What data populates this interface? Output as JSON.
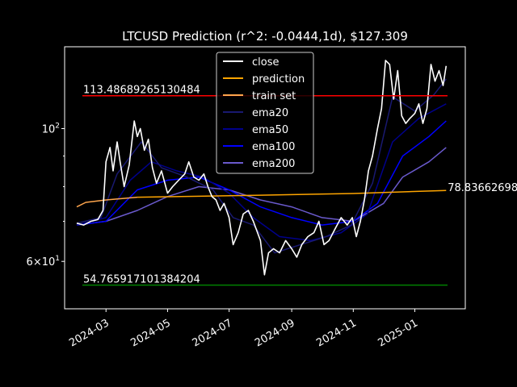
{
  "chart_data": {
    "type": "line",
    "title": "LTCUSD Prediction (r^2: -0.0444,1d), $127.309",
    "xlabel": "",
    "ylabel": "",
    "y_scale": "log",
    "ylim": [
      50,
      137
    ],
    "xlim": [
      "2024-01-20",
      "2025-02-20"
    ],
    "grid": false,
    "background": "#000000",
    "x_ticks": [
      "2024-03",
      "2024-05",
      "2024-07",
      "2024-09",
      "2024-11",
      "2025-01"
    ],
    "y_ticks": [
      {
        "value": 100,
        "label": "10^2",
        "base": "10",
        "exp": "2"
      },
      {
        "value": 60,
        "label": "6x10^1",
        "base": "6×10",
        "exp": "1"
      }
    ],
    "y_minor_ticks": [
      70,
      80,
      90
    ],
    "legend": {
      "position": "top-center",
      "entries": [
        {
          "name": "close",
          "color": "#ffffff"
        },
        {
          "name": "prediction",
          "color": "#ffa500"
        },
        {
          "name": "train set",
          "color": "#ffa64d"
        },
        {
          "name": "ema20",
          "color": "#191970"
        },
        {
          "name": "ema50",
          "color": "#00008b"
        },
        {
          "name": "ema100",
          "color": "#0000ff"
        },
        {
          "name": "ema200",
          "color": "#6a5acd"
        }
      ]
    },
    "hlines": [
      {
        "value": 113.48689265130484,
        "label": "113.48689265130484",
        "color": "#ff0000"
      },
      {
        "value": 54.765917101384204,
        "label": "54.765917101384204",
        "color": "#008000"
      }
    ],
    "annotations": [
      {
        "date": "2025-02-01",
        "value": 78.83662698,
        "text": "78.83662698"
      }
    ],
    "series": [
      {
        "name": "close",
        "color": "#ffffff",
        "points": [
          [
            "2024-02-01",
            69.5
          ],
          [
            "2024-02-08",
            69.0
          ],
          [
            "2024-02-15",
            70.0
          ],
          [
            "2024-02-22",
            70.5
          ],
          [
            "2024-02-27",
            73.0
          ],
          [
            "2024-03-01",
            88.0
          ],
          [
            "2024-03-05",
            93.0
          ],
          [
            "2024-03-08",
            85.0
          ],
          [
            "2024-03-12",
            95.0
          ],
          [
            "2024-03-15",
            88.0
          ],
          [
            "2024-03-19",
            80.0
          ],
          [
            "2024-03-24",
            87.0
          ],
          [
            "2024-03-29",
            103.0
          ],
          [
            "2024-04-01",
            97.0
          ],
          [
            "2024-04-04",
            100.0
          ],
          [
            "2024-04-08",
            92.0
          ],
          [
            "2024-04-12",
            96.0
          ],
          [
            "2024-04-16",
            86.0
          ],
          [
            "2024-04-20",
            81.0
          ],
          [
            "2024-04-25",
            85.0
          ],
          [
            "2024-05-01",
            78.0
          ],
          [
            "2024-05-06",
            80.0
          ],
          [
            "2024-05-12",
            82.0
          ],
          [
            "2024-05-18",
            84.0
          ],
          [
            "2024-05-22",
            88.0
          ],
          [
            "2024-05-27",
            83.0
          ],
          [
            "2024-06-01",
            82.0
          ],
          [
            "2024-06-06",
            84.0
          ],
          [
            "2024-06-10",
            80.0
          ],
          [
            "2024-06-14",
            77.0
          ],
          [
            "2024-06-18",
            76.0
          ],
          [
            "2024-06-22",
            73.0
          ],
          [
            "2024-06-26",
            75.0
          ],
          [
            "2024-07-01",
            71.0
          ],
          [
            "2024-07-05",
            64.0
          ],
          [
            "2024-07-10",
            67.0
          ],
          [
            "2024-07-15",
            72.0
          ],
          [
            "2024-07-20",
            73.0
          ],
          [
            "2024-07-25",
            70.0
          ],
          [
            "2024-08-01",
            65.0
          ],
          [
            "2024-08-05",
            57.0
          ],
          [
            "2024-08-09",
            62.0
          ],
          [
            "2024-08-14",
            63.0
          ],
          [
            "2024-08-20",
            62.0
          ],
          [
            "2024-08-26",
            65.0
          ],
          [
            "2024-09-01",
            63.0
          ],
          [
            "2024-09-06",
            61.0
          ],
          [
            "2024-09-11",
            64.0
          ],
          [
            "2024-09-17",
            66.0
          ],
          [
            "2024-09-23",
            67.0
          ],
          [
            "2024-09-28",
            70.0
          ],
          [
            "2024-10-03",
            64.0
          ],
          [
            "2024-10-08",
            65.0
          ],
          [
            "2024-10-14",
            68.0
          ],
          [
            "2024-10-20",
            71.0
          ],
          [
            "2024-10-26",
            69.0
          ],
          [
            "2024-10-31",
            71.0
          ],
          [
            "2024-11-04",
            66.0
          ],
          [
            "2024-11-08",
            70.0
          ],
          [
            "2024-11-12",
            76.0
          ],
          [
            "2024-11-16",
            85.0
          ],
          [
            "2024-11-20",
            90.0
          ],
          [
            "2024-11-25",
            100.0
          ],
          [
            "2024-11-29",
            108.0
          ],
          [
            "2024-12-03",
            130.0
          ],
          [
            "2024-12-07",
            128.0
          ],
          [
            "2024-12-11",
            112.0
          ],
          [
            "2024-12-15",
            125.0
          ],
          [
            "2024-12-19",
            105.0
          ],
          [
            "2024-12-23",
            102.0
          ],
          [
            "2024-12-27",
            104.0
          ],
          [
            "2025-01-01",
            106.0
          ],
          [
            "2025-01-05",
            110.0
          ],
          [
            "2025-01-09",
            102.0
          ],
          [
            "2025-01-13",
            108.0
          ],
          [
            "2025-01-17",
            128.0
          ],
          [
            "2025-01-21",
            120.0
          ],
          [
            "2025-01-25",
            125.0
          ],
          [
            "2025-01-29",
            118.0
          ],
          [
            "2025-02-01",
            127.309
          ]
        ]
      },
      {
        "name": "prediction",
        "color": "#ffa500",
        "points": [
          [
            "2024-04-01",
            76.8
          ],
          [
            "2024-08-01",
            77.4
          ],
          [
            "2024-11-01",
            77.9
          ],
          [
            "2025-02-01",
            78.83662698
          ]
        ]
      },
      {
        "name": "train set",
        "color": "#ffa64d",
        "points": [
          [
            "2024-02-01",
            74.0
          ],
          [
            "2024-02-10",
            75.3
          ],
          [
            "2024-03-01",
            76.0
          ],
          [
            "2024-04-01",
            76.8
          ]
        ]
      },
      {
        "name": "ema20",
        "color": "#191970",
        "points": [
          [
            "2024-02-01",
            69.5
          ],
          [
            "2024-02-25",
            71.0
          ],
          [
            "2024-03-12",
            84.0
          ],
          [
            "2024-04-05",
            95.0
          ],
          [
            "2024-04-25",
            86.0
          ],
          [
            "2024-05-20",
            83.0
          ],
          [
            "2024-06-15",
            79.0
          ],
          [
            "2024-07-05",
            71.0
          ],
          [
            "2024-07-25",
            69.0
          ],
          [
            "2024-08-15",
            62.0
          ],
          [
            "2024-09-10",
            64.0
          ],
          [
            "2024-10-05",
            66.0
          ],
          [
            "2024-10-30",
            69.0
          ],
          [
            "2024-11-20",
            81.0
          ],
          [
            "2024-12-10",
            113.0
          ],
          [
            "2025-01-01",
            107.0
          ],
          [
            "2025-01-20",
            114.0
          ],
          [
            "2025-02-01",
            121.0
          ]
        ]
      },
      {
        "name": "ema50",
        "color": "#00008b",
        "points": [
          [
            "2024-02-01",
            69.0
          ],
          [
            "2024-03-01",
            71.0
          ],
          [
            "2024-03-25",
            82.0
          ],
          [
            "2024-04-15",
            88.0
          ],
          [
            "2024-05-10",
            85.0
          ],
          [
            "2024-06-05",
            83.0
          ],
          [
            "2024-07-01",
            78.0
          ],
          [
            "2024-07-25",
            71.0
          ],
          [
            "2024-08-20",
            66.0
          ],
          [
            "2024-09-20",
            65.0
          ],
          [
            "2024-10-20",
            67.0
          ],
          [
            "2024-11-15",
            72.0
          ],
          [
            "2024-12-10",
            95.0
          ],
          [
            "2025-01-05",
            104.0
          ],
          [
            "2025-02-01",
            110.0
          ]
        ]
      },
      {
        "name": "ema100",
        "color": "#0000ff",
        "points": [
          [
            "2024-02-01",
            69.0
          ],
          [
            "2024-03-01",
            70.0
          ],
          [
            "2024-04-01",
            79.0
          ],
          [
            "2024-05-01",
            82.0
          ],
          [
            "2024-06-01",
            83.0
          ],
          [
            "2024-07-01",
            79.0
          ],
          [
            "2024-08-01",
            74.0
          ],
          [
            "2024-09-01",
            71.0
          ],
          [
            "2024-10-01",
            69.0
          ],
          [
            "2024-11-01",
            70.0
          ],
          [
            "2024-11-25",
            75.0
          ],
          [
            "2024-12-20",
            90.0
          ],
          [
            "2025-01-15",
            97.0
          ],
          [
            "2025-02-01",
            103.0
          ]
        ]
      },
      {
        "name": "ema200",
        "color": "#6a5acd",
        "points": [
          [
            "2024-02-01",
            69.0
          ],
          [
            "2024-03-01",
            70.0
          ],
          [
            "2024-04-01",
            73.0
          ],
          [
            "2024-05-01",
            77.0
          ],
          [
            "2024-06-01",
            80.0
          ],
          [
            "2024-07-01",
            79.0
          ],
          [
            "2024-08-01",
            76.0
          ],
          [
            "2024-09-01",
            74.0
          ],
          [
            "2024-10-01",
            71.0
          ],
          [
            "2024-11-01",
            70.0
          ],
          [
            "2024-12-01",
            75.0
          ],
          [
            "2024-12-20",
            83.0
          ],
          [
            "2025-01-15",
            88.0
          ],
          [
            "2025-02-01",
            93.0
          ]
        ]
      }
    ]
  }
}
